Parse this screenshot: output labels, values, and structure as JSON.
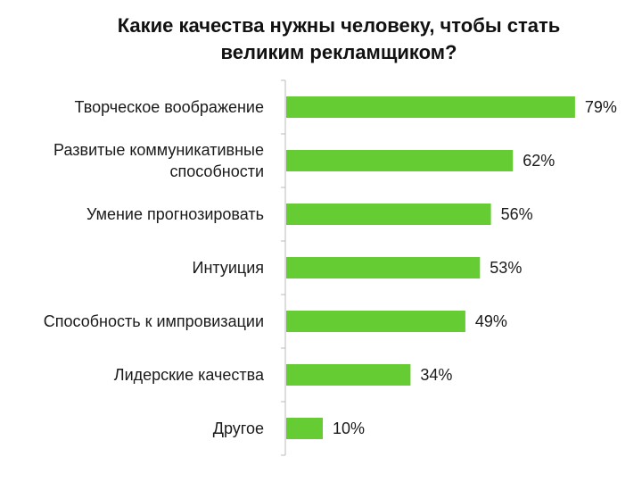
{
  "chart_data": {
    "type": "bar",
    "orientation": "horizontal",
    "title": "Какие качества нужны человеку, чтобы стать\nвеликим рекламщиком?",
    "categories": [
      [
        "Творческое воображение"
      ],
      [
        "Развитые коммуникативные",
        "способности"
      ],
      [
        "Умение прогнозировать"
      ],
      [
        "Интуиция"
      ],
      [
        "Способность к импровизации"
      ],
      [
        "Лидерские качества"
      ],
      [
        "Другое"
      ]
    ],
    "values": [
      79,
      62,
      56,
      53,
      49,
      34,
      10
    ],
    "value_labels": [
      "79%",
      "62%",
      "56%",
      "53%",
      "49%",
      "34%",
      "10%"
    ],
    "unit": "%",
    "xlim": [
      0,
      100
    ],
    "grid": false,
    "legend": "none",
    "bar_color": "#66cc33",
    "axis_color": "#bbbbbb"
  }
}
